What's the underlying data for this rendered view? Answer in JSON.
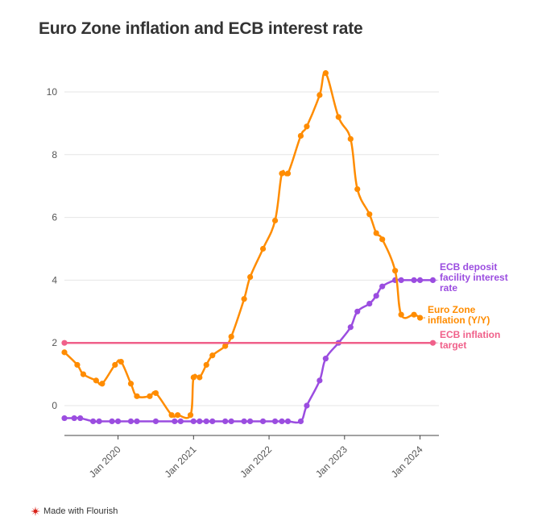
{
  "title": "Euro Zone inflation and ECB interest rate",
  "footer": {
    "text": "Made with Flourish",
    "icon": "flourish-logo-icon"
  },
  "colors": {
    "inflation": "#ff8c00",
    "deposit_rate": "#9b4de0",
    "target": "#f0608a",
    "grid": "#e6e6e6",
    "axis": "#444444"
  },
  "chart_data": {
    "type": "line",
    "title": "Euro Zone inflation and ECB interest rate",
    "xlabel": "",
    "ylabel": "",
    "ylim": [
      -1,
      11
    ],
    "yticks": [
      0,
      2,
      4,
      6,
      8,
      10
    ],
    "xlim": [
      2019.29,
      2024.25
    ],
    "xticks": [
      {
        "label": "Jan 2020",
        "value": 2020.0
      },
      {
        "label": "Jan 2021",
        "value": 2021.0
      },
      {
        "label": "Jan 2022",
        "value": 2022.0
      },
      {
        "label": "Jan 2023",
        "value": 2023.0
      },
      {
        "label": "Jan 2024",
        "value": 2024.0
      }
    ],
    "series": [
      {
        "name": "ECB deposit facility interest rate",
        "label": "ECB deposit facility interest rate",
        "color": "#9b4de0",
        "points": [
          [
            2019.29,
            -0.4
          ],
          [
            2019.42,
            -0.4
          ],
          [
            2019.5,
            -0.4
          ],
          [
            2019.67,
            -0.5
          ],
          [
            2019.75,
            -0.5
          ],
          [
            2019.92,
            -0.5
          ],
          [
            2020.0,
            -0.5
          ],
          [
            2020.17,
            -0.5
          ],
          [
            2020.25,
            -0.5
          ],
          [
            2020.5,
            -0.5
          ],
          [
            2020.75,
            -0.5
          ],
          [
            2020.83,
            -0.5
          ],
          [
            2021.0,
            -0.5
          ],
          [
            2021.08,
            -0.5
          ],
          [
            2021.17,
            -0.5
          ],
          [
            2021.25,
            -0.5
          ],
          [
            2021.42,
            -0.5
          ],
          [
            2021.5,
            -0.5
          ],
          [
            2021.67,
            -0.5
          ],
          [
            2021.75,
            -0.5
          ],
          [
            2021.92,
            -0.5
          ],
          [
            2022.08,
            -0.5
          ],
          [
            2022.17,
            -0.5
          ],
          [
            2022.25,
            -0.5
          ],
          [
            2022.42,
            -0.5
          ],
          [
            2022.5,
            0.0
          ],
          [
            2022.67,
            0.8
          ],
          [
            2022.75,
            1.5
          ],
          [
            2022.92,
            2.0
          ],
          [
            2023.08,
            2.5
          ],
          [
            2023.17,
            3.0
          ],
          [
            2023.33,
            3.25
          ],
          [
            2023.42,
            3.5
          ],
          [
            2023.5,
            3.8
          ],
          [
            2023.67,
            4.0
          ],
          [
            2023.75,
            4.0
          ],
          [
            2023.92,
            4.0
          ],
          [
            2024.0,
            4.0
          ],
          [
            2024.17,
            4.0
          ]
        ]
      },
      {
        "name": "Euro Zone inflation (Y/Y)",
        "label": "Euro Zone inflation (Y/Y)",
        "color": "#ff8c00",
        "points": [
          [
            2019.29,
            1.7
          ],
          [
            2019.46,
            1.3
          ],
          [
            2019.54,
            1.0
          ],
          [
            2019.71,
            0.8
          ],
          [
            2019.79,
            0.7
          ],
          [
            2019.96,
            1.3
          ],
          [
            2020.04,
            1.4
          ],
          [
            2020.17,
            0.7
          ],
          [
            2020.25,
            0.3
          ],
          [
            2020.42,
            0.3
          ],
          [
            2020.5,
            0.4
          ],
          [
            2020.71,
            -0.3
          ],
          [
            2020.79,
            -0.3
          ],
          [
            2020.96,
            -0.3
          ],
          [
            2021.0,
            0.9
          ],
          [
            2021.08,
            0.9
          ],
          [
            2021.17,
            1.3
          ],
          [
            2021.25,
            1.6
          ],
          [
            2021.42,
            1.9
          ],
          [
            2021.5,
            2.2
          ],
          [
            2021.67,
            3.4
          ],
          [
            2021.75,
            4.1
          ],
          [
            2021.92,
            5.0
          ],
          [
            2022.08,
            5.9
          ],
          [
            2022.17,
            7.4
          ],
          [
            2022.25,
            7.4
          ],
          [
            2022.42,
            8.6
          ],
          [
            2022.5,
            8.9
          ],
          [
            2022.67,
            9.9
          ],
          [
            2022.75,
            10.6
          ],
          [
            2022.92,
            9.2
          ],
          [
            2023.08,
            8.5
          ],
          [
            2023.17,
            6.9
          ],
          [
            2023.33,
            6.1
          ],
          [
            2023.42,
            5.5
          ],
          [
            2023.5,
            5.3
          ],
          [
            2023.67,
            4.3
          ],
          [
            2023.75,
            2.9
          ],
          [
            2023.92,
            2.9
          ],
          [
            2024.0,
            2.8
          ]
        ]
      },
      {
        "name": "ECB inflation target",
        "label": "ECB inflation target",
        "color": "#f0608a",
        "points": [
          [
            2019.29,
            2.0
          ],
          [
            2024.17,
            2.0
          ]
        ]
      }
    ]
  }
}
